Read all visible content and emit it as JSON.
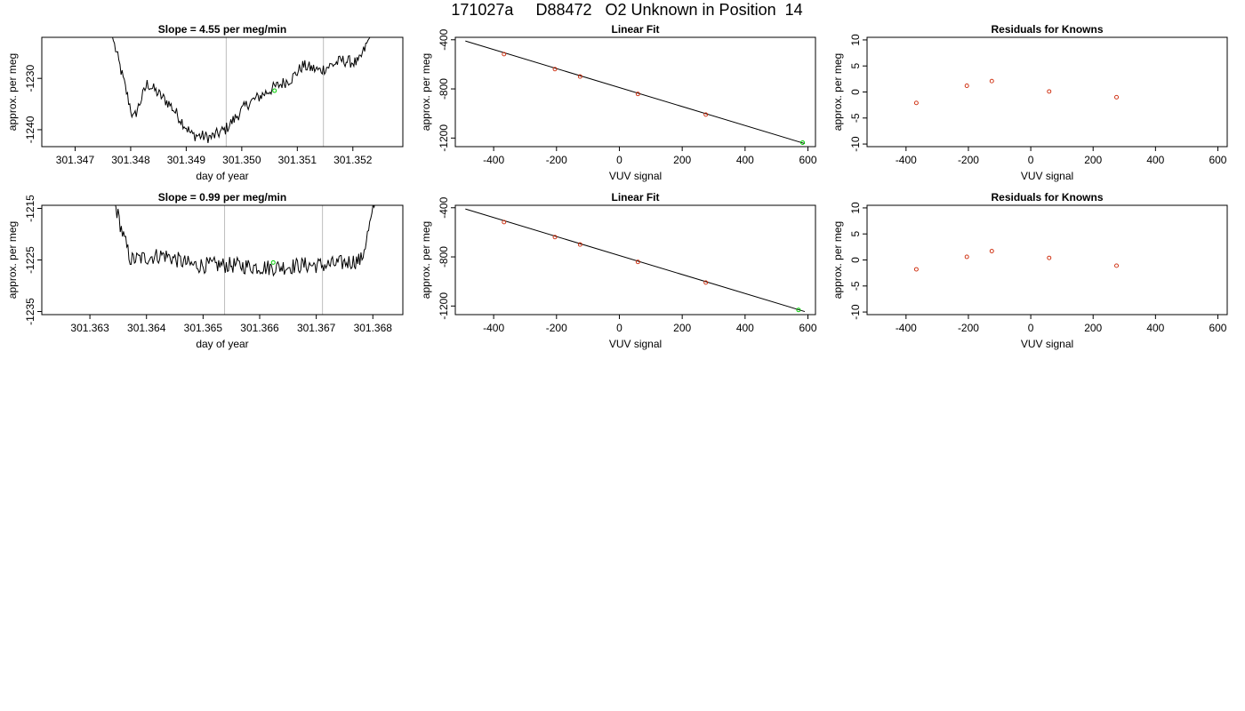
{
  "page": {
    "title": "171027a     D88472   O2 Unknown in Position  14"
  },
  "chart_data": [
    {
      "type": "line",
      "title": "Slope =  4.55  per meg/min",
      "xlabel": "day of year",
      "ylabel": "approx. per meg",
      "xlim": [
        301.3464,
        301.3529
      ],
      "ylim": [
        -1243.3,
        -1222
      ],
      "xticks": [
        301.347,
        301.348,
        301.349,
        301.35,
        301.351,
        301.352
      ],
      "xtick_labels": [
        "301.347",
        "301.348",
        "301.349",
        "301.350",
        "301.351",
        "301.352"
      ],
      "yticks": [
        -1240,
        -1230
      ],
      "ytick_labels": [
        "-1240",
        "-1230"
      ],
      "vlines": [
        301.34972,
        301.35147
      ],
      "trace_x_range": [
        301.34765,
        301.35235
      ],
      "trace_knots": [
        [
          301.34765,
          -1221
        ],
        [
          301.34785,
          -1229.5
        ],
        [
          301.34805,
          -1238
        ],
        [
          301.3483,
          -1231
        ],
        [
          301.3487,
          -1235
        ],
        [
          301.3491,
          -1241
        ],
        [
          301.34945,
          -1241.5
        ],
        [
          301.3497,
          -1240
        ],
        [
          301.3501,
          -1235
        ],
        [
          301.35055,
          -1232
        ],
        [
          301.3509,
          -1230
        ],
        [
          301.3511,
          -1227.5
        ],
        [
          301.3514,
          -1228.5
        ],
        [
          301.3518,
          -1226.5
        ],
        [
          301.3521,
          -1227
        ],
        [
          301.35235,
          -1221
        ]
      ],
      "trace_noise": 1.2,
      "marker": {
        "x": 301.35059,
        "y": -1232.4,
        "color": "#00cc00"
      },
      "grid": false,
      "legend": "none"
    },
    {
      "type": "scatter",
      "title": "Linear Fit",
      "xlabel": "VUV signal",
      "ylabel": "approx. per meg",
      "xlim": [
        -522,
        624
      ],
      "ylim": [
        -1270,
        -380
      ],
      "xticks": [
        -400,
        -200,
        0,
        200,
        400,
        600
      ],
      "xtick_labels": [
        "-400",
        "-200",
        "0",
        "200",
        "400",
        "600"
      ],
      "yticks": [
        -400,
        -800,
        -1200
      ],
      "ytick_labels": [
        "-400",
        "-800",
        "-1200"
      ],
      "fit_line": [
        [
          -490,
          -410
        ],
        [
          590,
          -1245
        ]
      ],
      "points": [
        {
          "x": -367,
          "y": -517
        },
        {
          "x": -205,
          "y": -639
        },
        {
          "x": -125,
          "y": -699
        },
        {
          "x": 59,
          "y": -841
        },
        {
          "x": 275,
          "y": -1009
        }
      ],
      "points_color": "#cc2200",
      "marker": {
        "x": 583,
        "y": -1237,
        "color": "#00cc00"
      },
      "grid": false,
      "legend": "none"
    },
    {
      "type": "scatter",
      "title": "Residuals for Knowns",
      "xlabel": "VUV signal",
      "ylabel": "approx. per meg",
      "xlim": [
        -525,
        630
      ],
      "ylim": [
        -10.5,
        10.5
      ],
      "xticks": [
        -400,
        -200,
        0,
        200,
        400,
        600
      ],
      "xtick_labels": [
        "-400",
        "-200",
        "0",
        "200",
        "400",
        "600"
      ],
      "yticks": [
        -10,
        -5,
        0,
        5,
        10
      ],
      "ytick_labels": [
        "-10",
        "-5",
        "0",
        "5",
        "10"
      ],
      "points": [
        {
          "x": -367,
          "y": -2.1
        },
        {
          "x": -205,
          "y": 1.2
        },
        {
          "x": -125,
          "y": 2.1
        },
        {
          "x": 59,
          "y": 0.1
        },
        {
          "x": 275,
          "y": -1.0
        }
      ],
      "points_color": "#cc2200",
      "grid": false,
      "legend": "none"
    },
    {
      "type": "line",
      "title": "Slope =  0.99  per meg/min",
      "xlabel": "day of year",
      "ylabel": "approx. per meg",
      "xlim": [
        301.36215,
        301.36853
      ],
      "ylim": [
        -1235.6,
        -1214.4
      ],
      "xticks": [
        301.363,
        301.364,
        301.365,
        301.366,
        301.367,
        301.368
      ],
      "xtick_labels": [
        "301.363",
        "301.364",
        "301.365",
        "301.366",
        "301.367",
        "301.368"
      ],
      "yticks": [
        -1235,
        -1225,
        -1215
      ],
      "ytick_labels": [
        "-1235",
        "-1225",
        "-1215"
      ],
      "vlines": [
        301.36538,
        301.36711
      ],
      "trace_x_range": [
        301.36342,
        301.36806
      ],
      "trace_knots": [
        [
          301.36342,
          -1213
        ],
        [
          301.36358,
          -1220
        ],
        [
          301.36372,
          -1225
        ],
        [
          301.3643,
          -1224
        ],
        [
          301.3648,
          -1226
        ],
        [
          301.3655,
          -1226
        ],
        [
          301.3662,
          -1226.5
        ],
        [
          301.3668,
          -1226
        ],
        [
          301.3672,
          -1226
        ],
        [
          301.3678,
          -1225
        ],
        [
          301.36806,
          -1213
        ]
      ],
      "trace_noise": 1.6,
      "marker": {
        "x": 301.36624,
        "y": -1225.5,
        "color": "#00cc00"
      },
      "grid": false,
      "legend": "none"
    },
    {
      "type": "scatter",
      "title": "Linear Fit",
      "xlabel": "VUV signal",
      "ylabel": "approx. per meg",
      "xlim": [
        -522,
        624
      ],
      "ylim": [
        -1270,
        -380
      ],
      "xticks": [
        -400,
        -200,
        0,
        200,
        400,
        600
      ],
      "xtick_labels": [
        "-400",
        "-200",
        "0",
        "200",
        "400",
        "600"
      ],
      "yticks": [
        -400,
        -800,
        -1200
      ],
      "ytick_labels": [
        "-400",
        "-800",
        "-1200"
      ],
      "fit_line": [
        [
          -490,
          -410
        ],
        [
          590,
          -1245
        ]
      ],
      "points": [
        {
          "x": -367,
          "y": -517
        },
        {
          "x": -205,
          "y": -639
        },
        {
          "x": -125,
          "y": -699
        },
        {
          "x": 59,
          "y": -841
        },
        {
          "x": 275,
          "y": -1009
        }
      ],
      "points_color": "#cc2200",
      "marker": {
        "x": 570,
        "y": -1232,
        "color": "#00cc00"
      },
      "grid": false,
      "legend": "none"
    },
    {
      "type": "scatter",
      "title": "Residuals for Knowns",
      "xlabel": "VUV signal",
      "ylabel": "approx. per meg",
      "xlim": [
        -525,
        630
      ],
      "ylim": [
        -10.5,
        10.5
      ],
      "xticks": [
        -400,
        -200,
        0,
        200,
        400,
        600
      ],
      "xtick_labels": [
        "-400",
        "-200",
        "0",
        "200",
        "400",
        "600"
      ],
      "yticks": [
        -10,
        -5,
        0,
        5,
        10
      ],
      "ytick_labels": [
        "-10",
        "-5",
        "0",
        "5",
        "10"
      ],
      "points": [
        {
          "x": -367,
          "y": -1.8
        },
        {
          "x": -205,
          "y": 0.6
        },
        {
          "x": -125,
          "y": 1.7
        },
        {
          "x": 59,
          "y": 0.4
        },
        {
          "x": 275,
          "y": -1.1
        }
      ],
      "points_color": "#cc2200",
      "grid": false,
      "legend": "none"
    }
  ]
}
